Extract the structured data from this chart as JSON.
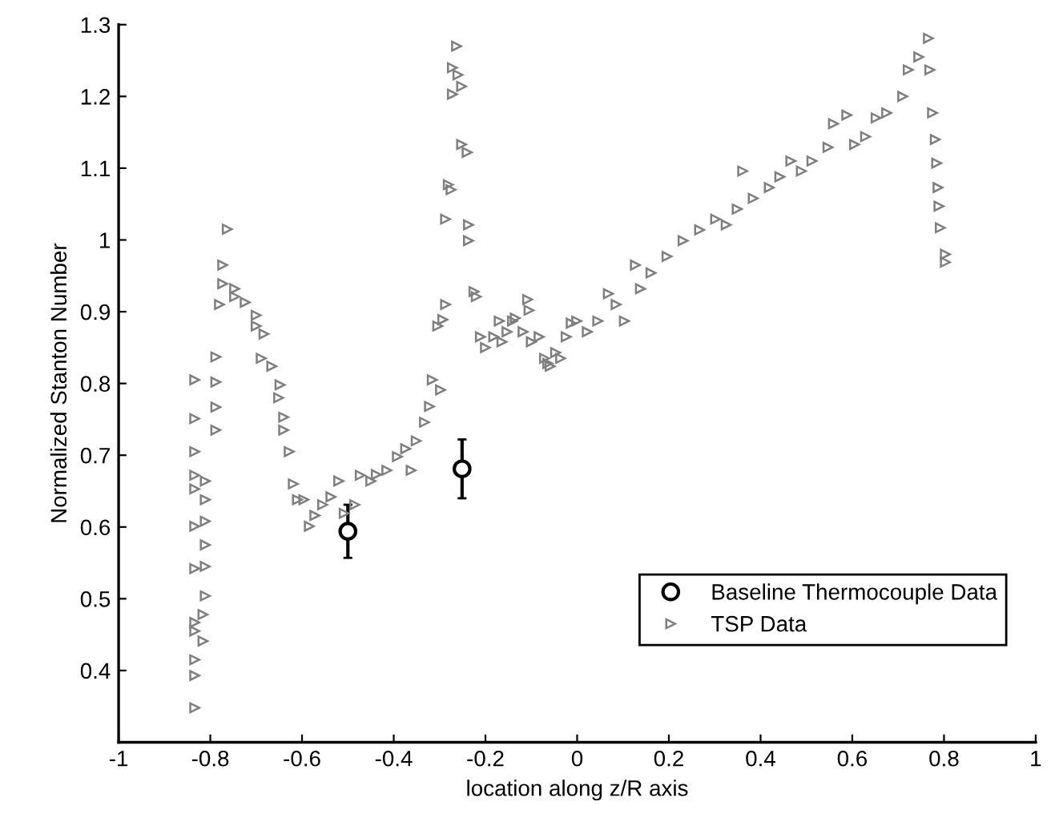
{
  "chart_data": {
    "type": "scatter",
    "xlabel": "location along z/R axis",
    "ylabel": "Normalized Stanton Number",
    "xlim": [
      -1,
      1
    ],
    "xticks": [
      -1,
      -0.8,
      -0.6,
      -0.4,
      -0.2,
      0,
      0.2,
      0.4,
      0.6,
      0.8,
      1
    ],
    "ylim": [
      0.3,
      1.3
    ],
    "yticks": [
      0.4,
      0.5,
      0.6,
      0.7,
      0.8,
      0.9,
      1,
      1.1,
      1.2,
      1.3
    ],
    "grid": false,
    "legend": "bottom right",
    "series": [
      {
        "name": "Baseline Thermocouple Data",
        "color": "#000000",
        "marker": "circle",
        "x": [
          -0.5,
          -0.251
        ],
        "values": [
          0.594,
          0.681
        ],
        "errors": [
          [
            0.557,
            0.631
          ],
          [
            0.64,
            0.722
          ]
        ]
      },
      {
        "name": "TSP Data",
        "color": "#7f7f7f",
        "marker": "triangle",
        "x": [
          -0.834,
          -0.834,
          -0.834,
          -0.834,
          -0.834,
          -0.834,
          -0.834,
          -0.834,
          -0.834,
          -0.834,
          -0.834,
          -0.834,
          -0.816,
          -0.816,
          -0.811,
          -0.811,
          -0.811,
          -0.811,
          -0.811,
          -0.811,
          -0.788,
          -0.788,
          -0.788,
          -0.788,
          -0.78,
          -0.773,
          -0.773,
          -0.763,
          -0.747,
          -0.747,
          -0.724,
          -0.7,
          -0.7,
          -0.683,
          -0.689,
          -0.666,
          -0.648,
          -0.651,
          -0.64,
          -0.64,
          -0.628,
          -0.619,
          -0.61,
          -0.596,
          -0.584,
          -0.572,
          -0.555,
          -0.537,
          -0.52,
          -0.508,
          -0.485,
          -0.473,
          -0.45,
          -0.438,
          -0.415,
          -0.392,
          -0.374,
          -0.362,
          -0.351,
          -0.333,
          -0.322,
          -0.316,
          -0.298,
          -0.304,
          -0.293,
          -0.287,
          -0.287,
          -0.281,
          -0.275,
          -0.272,
          -0.272,
          -0.263,
          -0.26,
          -0.252,
          -0.252,
          -0.24,
          -0.237,
          -0.237,
          -0.225,
          -0.22,
          -0.211,
          -0.2,
          -0.182,
          -0.17,
          -0.164,
          -0.153,
          -0.141,
          -0.135,
          -0.118,
          -0.108,
          -0.105,
          -0.1,
          -0.083,
          -0.071,
          -0.064,
          -0.059,
          -0.047,
          -0.036,
          -0.024,
          -0.013,
          -0.001,
          0.022,
          0.045,
          0.068,
          0.085,
          0.103,
          0.127,
          0.138,
          0.161,
          0.196,
          0.231,
          0.267,
          0.302,
          0.325,
          0.349,
          0.361,
          0.384,
          0.419,
          0.442,
          0.466,
          0.489,
          0.512,
          0.547,
          0.559,
          0.588,
          0.605,
          0.629,
          0.652,
          0.675,
          0.71,
          0.722,
          0.745,
          0.766,
          0.769,
          0.775,
          0.781,
          0.784,
          0.787,
          0.789,
          0.792,
          0.803,
          0.803
        ],
        "values": [
          0.805,
          0.751,
          0.705,
          0.672,
          0.653,
          0.601,
          0.542,
          0.467,
          0.455,
          0.415,
          0.393,
          0.348,
          0.441,
          0.478,
          0.504,
          0.545,
          0.575,
          0.608,
          0.638,
          0.664,
          0.735,
          0.767,
          0.802,
          0.837,
          0.91,
          0.939,
          0.965,
          1.015,
          0.932,
          0.921,
          0.913,
          0.895,
          0.88,
          0.869,
          0.835,
          0.824,
          0.798,
          0.78,
          0.753,
          0.735,
          0.705,
          0.66,
          0.638,
          0.638,
          0.601,
          0.616,
          0.631,
          0.642,
          0.664,
          0.619,
          0.631,
          0.672,
          0.664,
          0.673,
          0.679,
          0.698,
          0.709,
          0.679,
          0.72,
          0.746,
          0.768,
          0.805,
          0.791,
          0.88,
          0.889,
          0.91,
          1.029,
          1.077,
          1.07,
          1.203,
          1.24,
          1.27,
          1.23,
          1.214,
          1.133,
          1.122,
          1.021,
          0.999,
          0.928,
          0.921,
          0.865,
          0.85,
          0.865,
          0.887,
          0.858,
          0.872,
          0.887,
          0.891,
          0.872,
          0.917,
          0.902,
          0.858,
          0.865,
          0.835,
          0.828,
          0.824,
          0.843,
          0.835,
          0.865,
          0.884,
          0.887,
          0.872,
          0.887,
          0.925,
          0.91,
          0.887,
          0.965,
          0.932,
          0.954,
          0.977,
          0.999,
          1.014,
          1.029,
          1.021,
          1.043,
          1.096,
          1.058,
          1.073,
          1.088,
          1.11,
          1.096,
          1.11,
          1.129,
          1.162,
          1.174,
          1.133,
          1.144,
          1.17,
          1.177,
          1.2,
          1.237,
          1.255,
          1.281,
          1.237,
          1.177,
          1.14,
          1.107,
          1.073,
          1.047,
          1.017,
          0.98,
          0.969
        ]
      }
    ]
  }
}
